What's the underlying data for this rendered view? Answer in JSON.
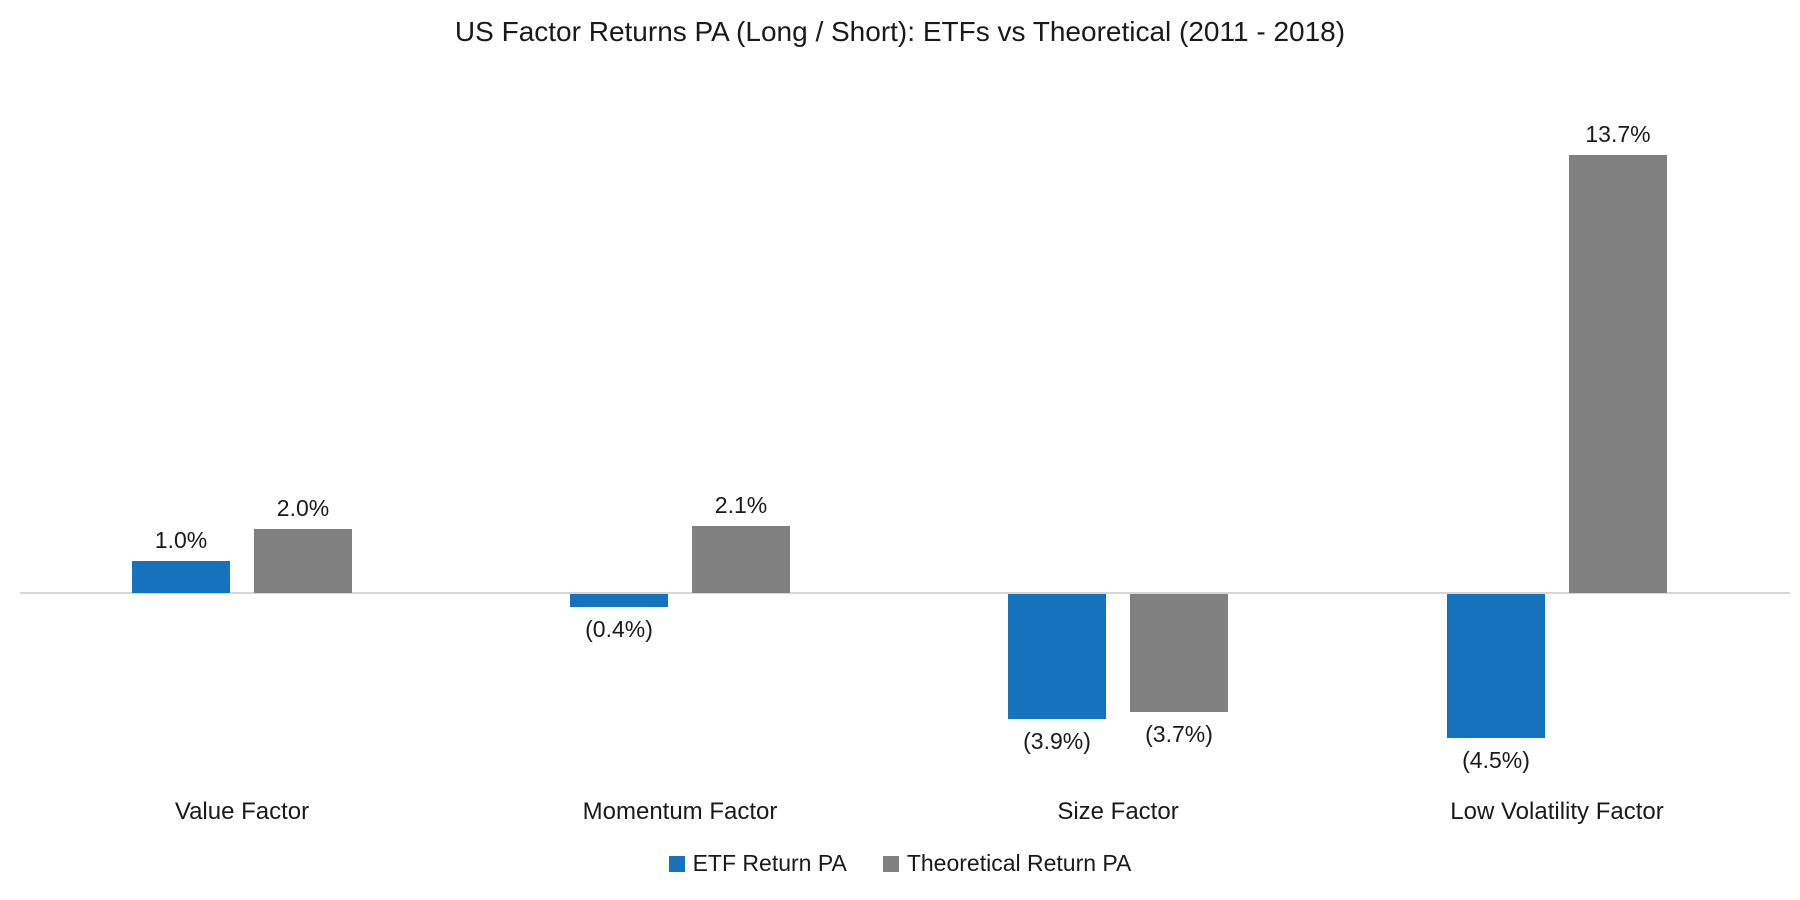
{
  "title": "US Factor Returns PA (Long / Short): ETFs vs Theoretical (2011 - 2018)",
  "chart_data": {
    "type": "bar",
    "title": "US Factor Returns PA (Long / Short): ETFs vs Theoretical (2011 - 2018)",
    "categories": [
      "Value Factor",
      "Momentum Factor",
      "Size Factor",
      "Low Volatility Factor"
    ],
    "category_ids": [
      "value-factor",
      "momentum-factor",
      "size-factor",
      "low-volatility-factor"
    ],
    "series": [
      {
        "id": "etf",
        "name": "ETF Return PA",
        "color": "#1473bc",
        "values": [
          1.0,
          -0.4,
          -3.9,
          -4.5
        ],
        "labels": [
          "1.0%",
          "(0.4%)",
          "(3.9%)",
          "(4.5%)"
        ]
      },
      {
        "id": "theoretical",
        "name": "Theoretical Return PA",
        "color": "#808080",
        "values": [
          2.0,
          2.1,
          -3.7,
          13.7
        ],
        "labels": [
          "2.0%",
          "2.1%",
          "(3.7%)",
          "13.7%"
        ]
      }
    ],
    "xlabel": "",
    "ylabel": "",
    "ylim": [
      -5.5,
      14.5
    ],
    "grid": false,
    "legend_position": "bottom",
    "value_format": "percent with one decimal, negatives shown in parentheses",
    "axis_line_color": "#d6d6d6",
    "background_color": "#ffffff"
  }
}
